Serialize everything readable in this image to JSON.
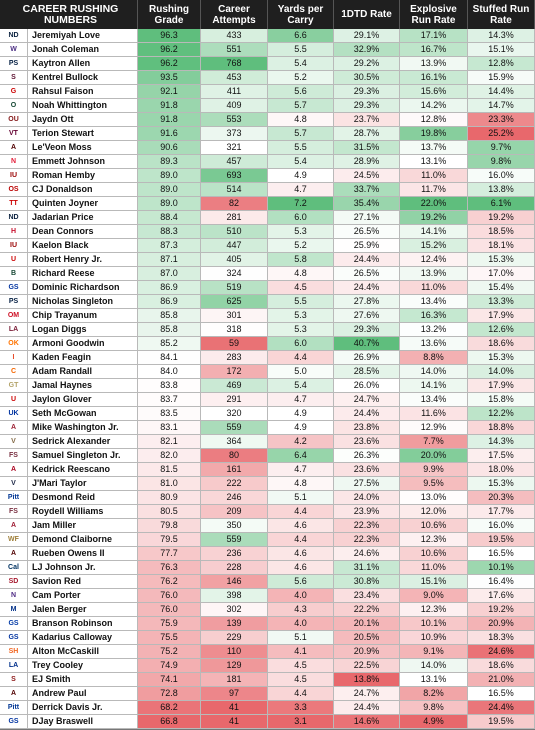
{
  "chart_data": {
    "type": "table",
    "title": "CAREER RUSHING NUMBERS",
    "columns": [
      "Rushing Grade",
      "Career Attempts",
      "Yards per Carry",
      "1DTD Rate",
      "Explosive Run Rate",
      "Stuffed Run Rate"
    ],
    "rows": [
      {
        "player": "Jeremiyah Love",
        "logo": "ND",
        "logo_color": "#0c2340",
        "values": [
          "96.3",
          "433",
          "6.6",
          "29.1%",
          "17.1%",
          "14.3%"
        ]
      },
      {
        "player": "Jonah Coleman",
        "logo": "W",
        "logo_color": "#4b2e83",
        "values": [
          "96.2",
          "551",
          "5.5",
          "32.9%",
          "16.7%",
          "15.1%"
        ]
      },
      {
        "player": "Kaytron Allen",
        "logo": "PS",
        "logo_color": "#041e42",
        "values": [
          "96.2",
          "768",
          "5.4",
          "29.2%",
          "13.9%",
          "12.8%"
        ]
      },
      {
        "player": "Kentrel Bullock",
        "logo": "S",
        "logo_color": "#5a0f2e",
        "values": [
          "93.5",
          "453",
          "5.2",
          "30.5%",
          "16.1%",
          "15.9%"
        ]
      },
      {
        "player": "Rahsul Faison",
        "logo": "G",
        "logo_color": "#cc0000",
        "values": [
          "92.1",
          "411",
          "5.6",
          "29.3%",
          "15.6%",
          "14.4%"
        ]
      },
      {
        "player": "Noah Whittington",
        "logo": "O",
        "logo_color": "#154733",
        "values": [
          "91.8",
          "409",
          "5.7",
          "29.3%",
          "14.2%",
          "14.7%"
        ]
      },
      {
        "player": "Jaydn Ott",
        "logo": "OU",
        "logo_color": "#841617",
        "values": [
          "91.8",
          "553",
          "4.8",
          "23.7%",
          "12.8%",
          "23.3%"
        ]
      },
      {
        "player": "Terion Stewart",
        "logo": "VT",
        "logo_color": "#630031",
        "values": [
          "91.6",
          "373",
          "5.7",
          "28.7%",
          "19.8%",
          "25.2%"
        ]
      },
      {
        "player": "Le'Veon Moss",
        "logo": "A",
        "logo_color": "#500000",
        "values": [
          "90.6",
          "321",
          "5.5",
          "31.5%",
          "13.7%",
          "9.7%"
        ]
      },
      {
        "player": "Emmett Johnson",
        "logo": "N",
        "logo_color": "#e41c38",
        "values": [
          "89.3",
          "457",
          "5.4",
          "28.9%",
          "13.1%",
          "9.8%"
        ]
      },
      {
        "player": "Roman Hemby",
        "logo": "IU",
        "logo_color": "#990000",
        "values": [
          "89.0",
          "693",
          "4.9",
          "24.5%",
          "11.0%",
          "16.0%"
        ]
      },
      {
        "player": "CJ Donaldson",
        "logo": "OS",
        "logo_color": "#bb0000",
        "values": [
          "89.0",
          "514",
          "4.7",
          "33.7%",
          "11.7%",
          "13.8%"
        ]
      },
      {
        "player": "Quinten Joyner",
        "logo": "TT",
        "logo_color": "#cc0000",
        "values": [
          "89.0",
          "82",
          "7.2",
          "35.4%",
          "22.0%",
          "6.1%"
        ]
      },
      {
        "player": "Jadarian Price",
        "logo": "ND",
        "logo_color": "#0c2340",
        "values": [
          "88.4",
          "281",
          "6.0",
          "27.1%",
          "19.2%",
          "19.2%"
        ]
      },
      {
        "player": "Dean Connors",
        "logo": "H",
        "logo_color": "#c8102e",
        "values": [
          "88.3",
          "510",
          "5.3",
          "26.5%",
          "14.1%",
          "18.5%"
        ]
      },
      {
        "player": "Kaelon Black",
        "logo": "IU",
        "logo_color": "#990000",
        "values": [
          "87.3",
          "447",
          "5.2",
          "25.9%",
          "15.2%",
          "18.1%"
        ]
      },
      {
        "player": "Robert Henry Jr.",
        "logo": "U",
        "logo_color": "#cc0000",
        "values": [
          "87.1",
          "405",
          "5.8",
          "24.4%",
          "12.4%",
          "15.3%"
        ]
      },
      {
        "player": "Richard Reese",
        "logo": "B",
        "logo_color": "#154734",
        "values": [
          "87.0",
          "324",
          "4.8",
          "26.5%",
          "13.9%",
          "17.0%"
        ]
      },
      {
        "player": "Dominic Richardson",
        "logo": "GS",
        "logo_color": "#0033a0",
        "values": [
          "86.9",
          "519",
          "4.5",
          "24.4%",
          "11.0%",
          "15.4%"
        ]
      },
      {
        "player": "Nicholas Singleton",
        "logo": "PS",
        "logo_color": "#041e42",
        "values": [
          "86.9",
          "625",
          "5.5",
          "27.8%",
          "13.4%",
          "13.3%"
        ]
      },
      {
        "player": "Chip Trayanum",
        "logo": "OM",
        "logo_color": "#ce1126",
        "values": [
          "85.8",
          "301",
          "5.3",
          "27.6%",
          "16.3%",
          "17.9%"
        ]
      },
      {
        "player": "Logan Diggs",
        "logo": "LA",
        "logo_color": "#7a1d37",
        "values": [
          "85.8",
          "318",
          "5.3",
          "29.3%",
          "13.2%",
          "12.6%"
        ]
      },
      {
        "player": "Armoni Goodwin",
        "logo": "OK",
        "logo_color": "#ff7300",
        "values": [
          "85.2",
          "59",
          "6.0",
          "40.7%",
          "13.6%",
          "18.6%"
        ]
      },
      {
        "player": "Kaden Feagin",
        "logo": "I",
        "logo_color": "#e84a27",
        "values": [
          "84.1",
          "283",
          "4.4",
          "26.9%",
          "8.8%",
          "15.3%"
        ]
      },
      {
        "player": "Adam Randall",
        "logo": "C",
        "logo_color": "#f56600",
        "values": [
          "84.0",
          "172",
          "5.0",
          "28.5%",
          "14.0%",
          "14.0%"
        ]
      },
      {
        "player": "Jamal Haynes",
        "logo": "GT",
        "logo_color": "#b3a369",
        "values": [
          "83.8",
          "469",
          "5.4",
          "26.0%",
          "14.1%",
          "17.9%"
        ]
      },
      {
        "player": "Jaylon Glover",
        "logo": "U",
        "logo_color": "#cc0000",
        "values": [
          "83.7",
          "291",
          "4.7",
          "24.7%",
          "13.4%",
          "15.8%"
        ]
      },
      {
        "player": "Seth McGowan",
        "logo": "UK",
        "logo_color": "#0033a0",
        "values": [
          "83.5",
          "320",
          "4.9",
          "24.4%",
          "11.6%",
          "12.2%"
        ]
      },
      {
        "player": "Mike Washington Jr.",
        "logo": "A",
        "logo_color": "#9d2235",
        "values": [
          "83.1",
          "559",
          "4.9",
          "23.8%",
          "12.9%",
          "18.8%"
        ]
      },
      {
        "player": "Sedrick Alexander",
        "logo": "V",
        "logo_color": "#866d4b",
        "values": [
          "82.1",
          "364",
          "4.2",
          "23.6%",
          "7.7%",
          "14.3%"
        ]
      },
      {
        "player": "Samuel Singleton Jr.",
        "logo": "FS",
        "logo_color": "#782f40",
        "values": [
          "82.0",
          "80",
          "6.4",
          "26.3%",
          "20.0%",
          "17.5%"
        ]
      },
      {
        "player": "Kedrick Reescano",
        "logo": "A",
        "logo_color": "#ab0520",
        "values": [
          "81.5",
          "161",
          "4.7",
          "23.6%",
          "9.9%",
          "18.0%"
        ]
      },
      {
        "player": "J'Mari Taylor",
        "logo": "V",
        "logo_color": "#232d4b",
        "values": [
          "81.0",
          "222",
          "4.8",
          "27.5%",
          "9.5%",
          "15.3%"
        ]
      },
      {
        "player": "Desmond Reid",
        "logo": "Pitt",
        "logo_color": "#003594",
        "values": [
          "80.9",
          "246",
          "5.1",
          "24.0%",
          "13.0%",
          "20.3%"
        ]
      },
      {
        "player": "Roydell Williams",
        "logo": "FS",
        "logo_color": "#782f40",
        "values": [
          "80.5",
          "209",
          "4.4",
          "23.9%",
          "12.0%",
          "17.7%"
        ]
      },
      {
        "player": "Jam Miller",
        "logo": "A",
        "logo_color": "#9e1b32",
        "values": [
          "79.8",
          "350",
          "4.6",
          "22.3%",
          "10.6%",
          "16.0%"
        ]
      },
      {
        "player": "Demond Claiborne",
        "logo": "WF",
        "logo_color": "#9e7e38",
        "values": [
          "79.5",
          "559",
          "4.4",
          "22.3%",
          "12.3%",
          "19.5%"
        ]
      },
      {
        "player": "Rueben Owens II",
        "logo": "A",
        "logo_color": "#500000",
        "values": [
          "77.7",
          "236",
          "4.6",
          "24.6%",
          "10.6%",
          "16.5%"
        ]
      },
      {
        "player": "LJ Johnson Jr.",
        "logo": "Cal",
        "logo_color": "#003262",
        "values": [
          "76.3",
          "228",
          "4.6",
          "31.1%",
          "11.0%",
          "10.1%"
        ]
      },
      {
        "player": "Savion Red",
        "logo": "SD",
        "logo_color": "#a6192e",
        "values": [
          "76.2",
          "146",
          "5.6",
          "30.8%",
          "15.1%",
          "16.4%"
        ]
      },
      {
        "player": "Cam Porter",
        "logo": "N",
        "logo_color": "#4e2a84",
        "values": [
          "76.0",
          "398",
          "4.0",
          "23.4%",
          "9.0%",
          "17.6%"
        ]
      },
      {
        "player": "Jalen Berger",
        "logo": "M",
        "logo_color": "#002f87",
        "values": [
          "76.0",
          "302",
          "4.3",
          "22.2%",
          "12.3%",
          "19.2%"
        ]
      },
      {
        "player": "Branson Robinson",
        "logo": "GS",
        "logo_color": "#0039a6",
        "values": [
          "75.9",
          "139",
          "4.0",
          "20.1%",
          "10.1%",
          "20.9%"
        ]
      },
      {
        "player": "Kadarius Calloway",
        "logo": "GS",
        "logo_color": "#0033a0",
        "values": [
          "75.5",
          "229",
          "5.1",
          "20.5%",
          "10.9%",
          "18.3%"
        ]
      },
      {
        "player": "Alton McCaskill",
        "logo": "SH",
        "logo_color": "#f26722",
        "values": [
          "75.2",
          "110",
          "4.1",
          "20.9%",
          "9.1%",
          "24.6%"
        ]
      },
      {
        "player": "Trey Cooley",
        "logo": "LA",
        "logo_color": "#002f8b",
        "values": [
          "74.9",
          "129",
          "4.5",
          "22.5%",
          "14.0%",
          "18.6%"
        ]
      },
      {
        "player": "EJ Smith",
        "logo": "S",
        "logo_color": "#8c1515",
        "values": [
          "74.1",
          "181",
          "4.5",
          "13.8%",
          "13.1%",
          "21.0%"
        ]
      },
      {
        "player": "Andrew Paul",
        "logo": "A",
        "logo_color": "#500000",
        "values": [
          "72.8",
          "97",
          "4.4",
          "24.7%",
          "8.2%",
          "16.5%"
        ]
      },
      {
        "player": "Derrick Davis Jr.",
        "logo": "Pitt",
        "logo_color": "#003594",
        "values": [
          "68.2",
          "41",
          "3.3",
          "24.4%",
          "9.8%",
          "24.4%"
        ]
      },
      {
        "player": "DJay Braswell",
        "logo": "GS",
        "logo_color": "#0033a0",
        "values": [
          "66.8",
          "41",
          "3.1",
          "14.6%",
          "4.9%",
          "19.5%"
        ]
      }
    ]
  }
}
